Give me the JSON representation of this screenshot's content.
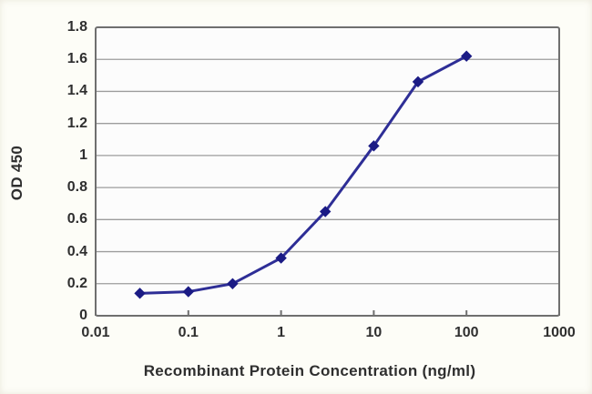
{
  "chart_data": {
    "type": "line",
    "title": "",
    "xlabel": "Recombinant Protein Concentration (ng/ml)",
    "ylabel": "OD 450",
    "x_scale": "log",
    "xlim": [
      0.01,
      1000
    ],
    "ylim": [
      0,
      1.8
    ],
    "x_ticks": [
      0.01,
      0.1,
      1,
      10,
      100,
      1000
    ],
    "x_tick_labels": [
      "0.01",
      "0.1",
      "1",
      "10",
      "100",
      "1000"
    ],
    "y_ticks": [
      0,
      0.2,
      0.4,
      0.6,
      0.8,
      1,
      1.2,
      1.4,
      1.6,
      1.8
    ],
    "y_tick_labels": [
      "0",
      "0.2",
      "0.4",
      "0.6",
      "0.8",
      "1",
      "1.2",
      "1.4",
      "1.6",
      "1.8"
    ],
    "grid": "horizontal",
    "legend": "none",
    "series": [
      {
        "name": "OD450",
        "marker": "diamond",
        "x": [
          0.03,
          0.1,
          0.3,
          1,
          3,
          10,
          30,
          100
        ],
        "y": [
          0.14,
          0.15,
          0.2,
          0.36,
          0.65,
          1.06,
          1.46,
          1.62
        ]
      }
    ]
  },
  "colors": {
    "line": "#2e2e96",
    "marker": "#1b1b85",
    "gridline": "#9c9c9c",
    "plot_border": "#6f6f6f",
    "plot_fill": "#fcfcfc",
    "text": "#2f2f2f",
    "background": "#fdfdf7"
  }
}
